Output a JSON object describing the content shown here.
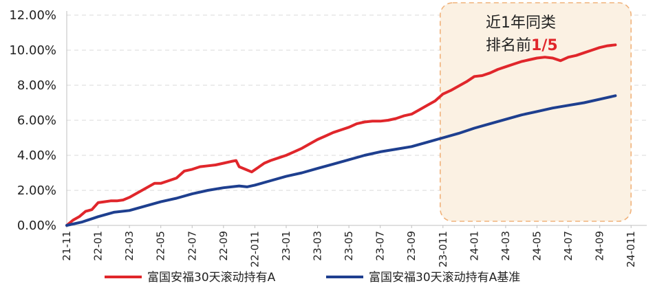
{
  "chart_data": {
    "type": "line",
    "x_ticks": [
      "21-11",
      "22-01",
      "22-03",
      "22-05",
      "22-07",
      "22-09",
      "22-011",
      "23-01",
      "23-03",
      "23-05",
      "23-07",
      "23-09",
      "23-011",
      "24-01",
      "24-03",
      "24-05",
      "24-07",
      "24-09",
      "24-011"
    ],
    "y_ticks": [
      "0.00%",
      "2.00%",
      "4.00%",
      "6.00%",
      "8.00%",
      "10.00%",
      "12.00%"
    ],
    "ylim": [
      0,
      12
    ],
    "xlim": [
      0,
      37
    ],
    "grid": "horizontal-dashed",
    "legend_position": "bottom",
    "series": [
      {
        "name": "富国安福30天滚动持有A",
        "color": "#e0262b",
        "points": [
          [
            0,
            0.0
          ],
          [
            0.4,
            0.3
          ],
          [
            0.8,
            0.5
          ],
          [
            1.2,
            0.8
          ],
          [
            1.6,
            0.9
          ],
          [
            2.0,
            1.3
          ],
          [
            2.4,
            1.35
          ],
          [
            2.8,
            1.4
          ],
          [
            3.2,
            1.4
          ],
          [
            3.6,
            1.45
          ],
          [
            4.0,
            1.6
          ],
          [
            4.4,
            1.8
          ],
          [
            4.8,
            2.0
          ],
          [
            5.2,
            2.2
          ],
          [
            5.6,
            2.4
          ],
          [
            6.0,
            2.4
          ],
          [
            6.5,
            2.55
          ],
          [
            7.0,
            2.7
          ],
          [
            7.5,
            3.1
          ],
          [
            8.0,
            3.2
          ],
          [
            8.5,
            3.35
          ],
          [
            9.0,
            3.4
          ],
          [
            9.5,
            3.45
          ],
          [
            10.0,
            3.55
          ],
          [
            10.5,
            3.65
          ],
          [
            10.8,
            3.7
          ],
          [
            11.0,
            3.35
          ],
          [
            11.4,
            3.2
          ],
          [
            11.8,
            3.05
          ],
          [
            12.2,
            3.3
          ],
          [
            12.6,
            3.55
          ],
          [
            13.0,
            3.7
          ],
          [
            13.5,
            3.85
          ],
          [
            14.0,
            4.0
          ],
          [
            14.5,
            4.2
          ],
          [
            15.0,
            4.4
          ],
          [
            15.5,
            4.65
          ],
          [
            16.0,
            4.9
          ],
          [
            16.5,
            5.1
          ],
          [
            17.0,
            5.3
          ],
          [
            17.5,
            5.45
          ],
          [
            18.0,
            5.6
          ],
          [
            18.5,
            5.8
          ],
          [
            19.0,
            5.9
          ],
          [
            19.5,
            5.95
          ],
          [
            20.0,
            5.95
          ],
          [
            20.5,
            6.0
          ],
          [
            21.0,
            6.1
          ],
          [
            21.5,
            6.25
          ],
          [
            22.0,
            6.35
          ],
          [
            22.5,
            6.6
          ],
          [
            23.0,
            6.85
          ],
          [
            23.5,
            7.1
          ],
          [
            24.0,
            7.5
          ],
          [
            24.5,
            7.7
          ],
          [
            25.0,
            7.95
          ],
          [
            25.5,
            8.2
          ],
          [
            26.0,
            8.5
          ],
          [
            26.5,
            8.55
          ],
          [
            27.0,
            8.7
          ],
          [
            27.5,
            8.9
          ],
          [
            28.0,
            9.05
          ],
          [
            28.5,
            9.2
          ],
          [
            29.0,
            9.35
          ],
          [
            29.5,
            9.45
          ],
          [
            30.0,
            9.55
          ],
          [
            30.5,
            9.6
          ],
          [
            31.0,
            9.55
          ],
          [
            31.5,
            9.4
          ],
          [
            32.0,
            9.6
          ],
          [
            32.5,
            9.7
          ],
          [
            33.0,
            9.85
          ],
          [
            33.5,
            10.0
          ],
          [
            34.0,
            10.15
          ],
          [
            34.5,
            10.25
          ],
          [
            35.0,
            10.3
          ]
        ]
      },
      {
        "name": "富国安福30天滚动持有A基准",
        "color": "#1e3f8f",
        "points": [
          [
            0,
            0.0
          ],
          [
            1.0,
            0.2
          ],
          [
            2.0,
            0.5
          ],
          [
            3.0,
            0.75
          ],
          [
            4.0,
            0.85
          ],
          [
            5.0,
            1.1
          ],
          [
            6.0,
            1.35
          ],
          [
            7.0,
            1.55
          ],
          [
            8.0,
            1.8
          ],
          [
            9.0,
            2.0
          ],
          [
            10.0,
            2.15
          ],
          [
            11.0,
            2.25
          ],
          [
            11.5,
            2.2
          ],
          [
            12.0,
            2.3
          ],
          [
            13.0,
            2.55
          ],
          [
            14.0,
            2.8
          ],
          [
            15.0,
            3.0
          ],
          [
            16.0,
            3.25
          ],
          [
            17.0,
            3.5
          ],
          [
            18.0,
            3.75
          ],
          [
            19.0,
            4.0
          ],
          [
            20.0,
            4.2
          ],
          [
            21.0,
            4.35
          ],
          [
            22.0,
            4.5
          ],
          [
            23.0,
            4.75
          ],
          [
            24.0,
            5.0
          ],
          [
            25.0,
            5.25
          ],
          [
            26.0,
            5.55
          ],
          [
            27.0,
            5.8
          ],
          [
            28.0,
            6.05
          ],
          [
            29.0,
            6.3
          ],
          [
            30.0,
            6.5
          ],
          [
            31.0,
            6.7
          ],
          [
            32.0,
            6.85
          ],
          [
            33.0,
            7.0
          ],
          [
            34.0,
            7.2
          ],
          [
            35.0,
            7.4
          ]
        ]
      }
    ],
    "annotation": {
      "line1": "近1年同类",
      "line2_prefix": "排名前",
      "line2_highlight": "1/5",
      "highlight_color": "#e0262b",
      "box_fill": "#fbf1e3",
      "box_stroke": "#f0b27a",
      "x_range": [
        24.0,
        36.0
      ]
    }
  }
}
